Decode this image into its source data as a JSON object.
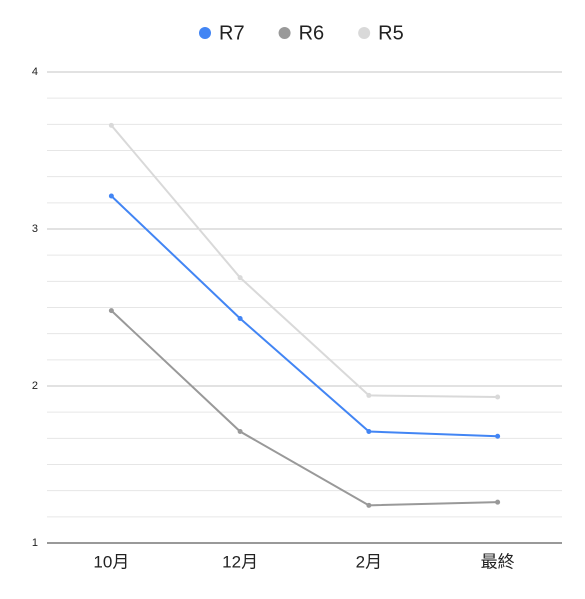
{
  "chart_data": {
    "type": "line",
    "categories": [
      "10月",
      "12月",
      "2月",
      "最終"
    ],
    "series": [
      {
        "name": "R7",
        "color": "#4285f4",
        "values": [
          3.21,
          2.43,
          1.71,
          1.68
        ]
      },
      {
        "name": "R6",
        "color": "#999999",
        "values": [
          2.48,
          1.71,
          1.24,
          1.26
        ]
      },
      {
        "name": "R5",
        "color": "#d9d9d9",
        "values": [
          3.66,
          2.69,
          1.94,
          1.93
        ]
      }
    ],
    "ylim": [
      1,
      4
    ],
    "yticks": [
      1,
      2,
      3,
      4
    ],
    "grid": true,
    "minor_gridlines_per_major": 6,
    "legend": "top"
  }
}
